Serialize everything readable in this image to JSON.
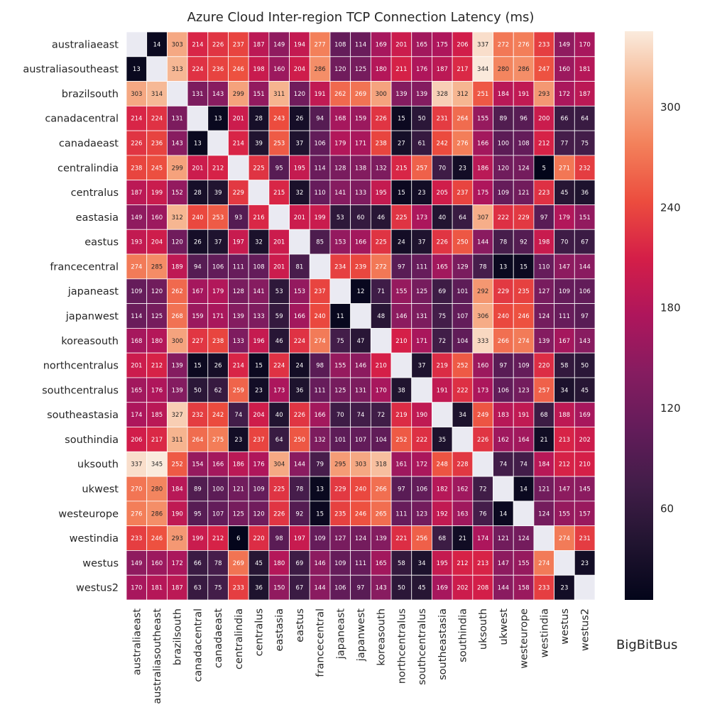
{
  "chart_data": {
    "type": "heatmap",
    "title": "Azure Cloud Inter-region TCP Connection Latency (ms)",
    "xlabel": "",
    "ylabel": "",
    "rows": [
      "australiaeast",
      "australiasoutheast",
      "brazilsouth",
      "canadacentral",
      "canadaeast",
      "centralindia",
      "centralus",
      "eastasia",
      "eastus",
      "francecentral",
      "japaneast",
      "japanwest",
      "koreasouth",
      "northcentralus",
      "southcentralus",
      "southeastasia",
      "southindia",
      "uksouth",
      "ukwest",
      "westeurope",
      "westindia",
      "westus",
      "westus2"
    ],
    "columns": [
      "australiaeast",
      "australiasoutheast",
      "brazilsouth",
      "canadacentral",
      "canadaeast",
      "centralindia",
      "centralus",
      "eastasia",
      "eastus",
      "francecentral",
      "japaneast",
      "japanwest",
      "koreasouth",
      "northcentralus",
      "southcentralus",
      "southeastasia",
      "southindia",
      "uksouth",
      "ukwest",
      "westeurope",
      "westindia",
      "westus",
      "westus2"
    ],
    "values": [
      [
        null,
        14,
        303,
        214,
        226,
        237,
        187,
        149,
        194,
        277,
        108,
        114,
        169,
        201,
        165,
        175,
        206,
        337,
        272,
        276,
        233,
        149,
        170
      ],
      [
        13,
        null,
        313,
        224,
        236,
        246,
        198,
        160,
        204,
        286,
        120,
        125,
        180,
        211,
        176,
        187,
        217,
        344,
        280,
        286,
        247,
        160,
        181
      ],
      [
        303,
        314,
        null,
        131,
        143,
        299,
        151,
        311,
        120,
        191,
        262,
        269,
        300,
        139,
        139,
        328,
        312,
        251,
        184,
        191,
        293,
        172,
        187
      ],
      [
        214,
        224,
        131,
        null,
        13,
        201,
        28,
        243,
        26,
        94,
        168,
        159,
        226,
        15,
        50,
        231,
        264,
        155,
        89,
        96,
        200,
        66,
        64
      ],
      [
        226,
        236,
        143,
        13,
        null,
        214,
        39,
        253,
        37,
        106,
        179,
        171,
        238,
        27,
        61,
        242,
        276,
        166,
        100,
        108,
        212,
        77,
        75
      ],
      [
        238,
        245,
        299,
        201,
        212,
        null,
        225,
        95,
        195,
        114,
        128,
        138,
        132,
        215,
        257,
        70,
        23,
        186,
        120,
        124,
        5,
        271,
        232
      ],
      [
        187,
        199,
        152,
        28,
        39,
        229,
        null,
        215,
        32,
        110,
        141,
        133,
        195,
        15,
        23,
        205,
        237,
        175,
        109,
        121,
        223,
        45,
        36
      ],
      [
        149,
        160,
        312,
        240,
        253,
        93,
        216,
        null,
        201,
        199,
        53,
        60,
        46,
        225,
        173,
        40,
        64,
        307,
        222,
        229,
        97,
        179,
        151
      ],
      [
        193,
        204,
        120,
        26,
        37,
        197,
        32,
        201,
        null,
        85,
        153,
        166,
        225,
        24,
        37,
        226,
        250,
        144,
        78,
        92,
        198,
        70,
        67
      ],
      [
        274,
        285,
        189,
        94,
        106,
        111,
        108,
        201,
        81,
        null,
        234,
        239,
        272,
        97,
        111,
        165,
        129,
        78,
        13,
        15,
        110,
        147,
        144
      ],
      [
        109,
        120,
        262,
        167,
        179,
        128,
        141,
        53,
        153,
        237,
        null,
        12,
        71,
        155,
        125,
        69,
        101,
        292,
        229,
        235,
        127,
        109,
        106
      ],
      [
        114,
        125,
        268,
        159,
        171,
        139,
        133,
        59,
        166,
        240,
        11,
        null,
        48,
        146,
        131,
        75,
        107,
        306,
        240,
        246,
        124,
        111,
        97
      ],
      [
        168,
        180,
        300,
        227,
        238,
        133,
        196,
        46,
        224,
        274,
        75,
        47,
        null,
        210,
        171,
        72,
        104,
        333,
        266,
        274,
        139,
        167,
        143
      ],
      [
        201,
        212,
        139,
        15,
        26,
        214,
        15,
        224,
        24,
        98,
        155,
        146,
        210,
        null,
        37,
        219,
        252,
        160,
        97,
        109,
        220,
        58,
        50
      ],
      [
        165,
        176,
        139,
        50,
        62,
        259,
        23,
        173,
        36,
        111,
        125,
        131,
        170,
        38,
        null,
        191,
        222,
        173,
        106,
        123,
        257,
        34,
        45
      ],
      [
        174,
        185,
        327,
        232,
        242,
        74,
        204,
        40,
        226,
        166,
        70,
        74,
        72,
        219,
        190,
        null,
        34,
        249,
        183,
        191,
        68,
        188,
        169
      ],
      [
        206,
        217,
        311,
        264,
        275,
        23,
        237,
        64,
        250,
        132,
        101,
        107,
        104,
        252,
        222,
        35,
        null,
        226,
        162,
        164,
        21,
        213,
        202
      ],
      [
        337,
        345,
        252,
        154,
        166,
        186,
        176,
        304,
        144,
        79,
        295,
        303,
        318,
        161,
        172,
        248,
        228,
        null,
        74,
        74,
        184,
        212,
        210
      ],
      [
        270,
        280,
        184,
        89,
        100,
        121,
        109,
        225,
        78,
        13,
        229,
        240,
        266,
        97,
        106,
        182,
        162,
        72,
        null,
        14,
        121,
        147,
        145
      ],
      [
        276,
        286,
        190,
        95,
        107,
        125,
        120,
        226,
        92,
        15,
        235,
        246,
        265,
        111,
        123,
        192,
        163,
        76,
        14,
        null,
        124,
        155,
        157
      ],
      [
        233,
        246,
        293,
        199,
        212,
        6,
        220,
        98,
        197,
        109,
        127,
        124,
        139,
        221,
        256,
        68,
        21,
        174,
        121,
        124,
        null,
        274,
        231
      ],
      [
        149,
        160,
        172,
        66,
        78,
        269,
        45,
        180,
        69,
        146,
        109,
        111,
        165,
        58,
        34,
        195,
        212,
        213,
        147,
        155,
        274,
        null,
        23
      ],
      [
        170,
        181,
        187,
        63,
        75,
        233,
        36,
        150,
        67,
        144,
        106,
        97,
        143,
        50,
        45,
        169,
        202,
        208,
        144,
        158,
        233,
        23,
        null
      ]
    ],
    "missing_color": "#eaeaf2",
    "colormap": "rocket",
    "vmin": 5,
    "vmax": 345,
    "colorbar": {
      "ticks": [
        60,
        120,
        180,
        240,
        300
      ],
      "placement": "right"
    },
    "annotations": true,
    "grid": false
  },
  "watermark": "BigBitBus"
}
